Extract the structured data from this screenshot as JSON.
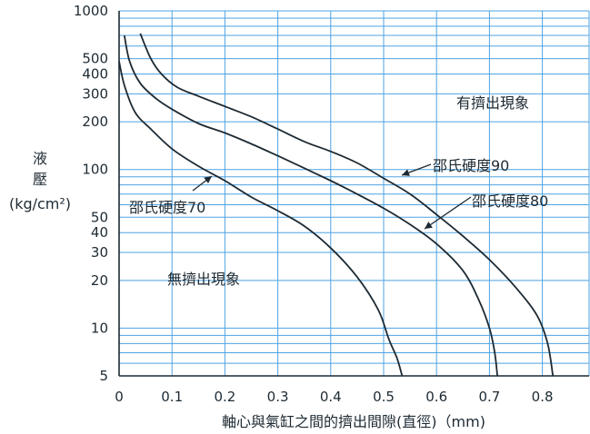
{
  "chart_data": {
    "type": "line",
    "title": "",
    "xlabel": "軸心與氣缸之間的擠出間隙(直徑)（mm)",
    "ylabel_lines": [
      "液",
      "壓",
      "(kg/cm²)"
    ],
    "x_scale": "linear",
    "y_scale": "log",
    "xlim": [
      0,
      0.9
    ],
    "ylim": [
      5,
      1000
    ],
    "grid": true,
    "x_ticks": [
      "0",
      "0.1",
      "0.2",
      "0.3",
      "0.4",
      "0.5",
      "0.6",
      "0.7",
      "0.8"
    ],
    "y_ticks": [
      "1000",
      "500",
      "400",
      "300",
      "200",
      "100",
      "50",
      "40",
      "30",
      "20",
      "10",
      "5"
    ],
    "series": [
      {
        "name": "邵氏硬度70",
        "x": [
          0.0,
          0.01,
          0.03,
          0.06,
          0.1,
          0.15,
          0.2,
          0.25,
          0.3,
          0.35,
          0.4,
          0.45,
          0.49,
          0.51,
          0.525,
          0.535
        ],
        "y": [
          480,
          340,
          230,
          180,
          135,
          105,
          85,
          67,
          55,
          44,
          32,
          21,
          13,
          8.5,
          6.5,
          5
        ]
      },
      {
        "name": "邵氏硬度80",
        "x": [
          0.01,
          0.02,
          0.04,
          0.07,
          0.1,
          0.15,
          0.2,
          0.25,
          0.3,
          0.35,
          0.4,
          0.45,
          0.5,
          0.55,
          0.6,
          0.65,
          0.68,
          0.7,
          0.71,
          0.715
        ],
        "y": [
          700,
          480,
          350,
          280,
          240,
          195,
          170,
          145,
          122,
          102,
          85,
          70,
          57,
          45,
          34,
          23,
          15,
          10,
          7,
          5
        ]
      },
      {
        "name": "邵氏硬度90",
        "x": [
          0.04,
          0.06,
          0.08,
          0.11,
          0.15,
          0.2,
          0.25,
          0.3,
          0.35,
          0.4,
          0.45,
          0.5,
          0.55,
          0.6,
          0.65,
          0.7,
          0.75,
          0.79,
          0.81,
          0.82
        ],
        "y": [
          720,
          500,
          400,
          330,
          290,
          250,
          215,
          180,
          150,
          130,
          110,
          88,
          70,
          52,
          38,
          27,
          18,
          12,
          8,
          5
        ]
      }
    ],
    "annotations": [
      {
        "text": "有擠出現象"
      },
      {
        "text": "無擠出現象"
      }
    ],
    "series_labels": [
      "邵氏硬度70",
      "邵氏硬度80",
      "邵氏硬度90"
    ]
  }
}
